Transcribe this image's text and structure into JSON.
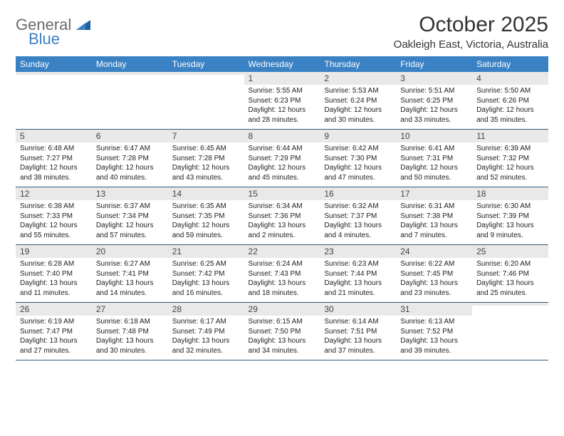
{
  "brand": {
    "name1": "General",
    "name2": "Blue"
  },
  "title": "October 2025",
  "location": "Oakleigh East, Victoria, Australia",
  "colors": {
    "header_bg": "#3b82c4",
    "header_text": "#ffffff",
    "daynum_bg": "#e9e9e9",
    "row_border": "#2f5a80",
    "logo_gray": "#6b6b6b",
    "logo_blue": "#3b82c4"
  },
  "weekdays": [
    "Sunday",
    "Monday",
    "Tuesday",
    "Wednesday",
    "Thursday",
    "Friday",
    "Saturday"
  ],
  "weeks": [
    [
      {
        "n": "",
        "l": [
          "",
          "",
          "",
          ""
        ]
      },
      {
        "n": "",
        "l": [
          "",
          "",
          "",
          ""
        ]
      },
      {
        "n": "",
        "l": [
          "",
          "",
          "",
          ""
        ]
      },
      {
        "n": "1",
        "l": [
          "Sunrise: 5:55 AM",
          "Sunset: 6:23 PM",
          "Daylight: 12 hours",
          "and 28 minutes."
        ]
      },
      {
        "n": "2",
        "l": [
          "Sunrise: 5:53 AM",
          "Sunset: 6:24 PM",
          "Daylight: 12 hours",
          "and 30 minutes."
        ]
      },
      {
        "n": "3",
        "l": [
          "Sunrise: 5:51 AM",
          "Sunset: 6:25 PM",
          "Daylight: 12 hours",
          "and 33 minutes."
        ]
      },
      {
        "n": "4",
        "l": [
          "Sunrise: 5:50 AM",
          "Sunset: 6:26 PM",
          "Daylight: 12 hours",
          "and 35 minutes."
        ]
      }
    ],
    [
      {
        "n": "5",
        "l": [
          "Sunrise: 6:48 AM",
          "Sunset: 7:27 PM",
          "Daylight: 12 hours",
          "and 38 minutes."
        ]
      },
      {
        "n": "6",
        "l": [
          "Sunrise: 6:47 AM",
          "Sunset: 7:28 PM",
          "Daylight: 12 hours",
          "and 40 minutes."
        ]
      },
      {
        "n": "7",
        "l": [
          "Sunrise: 6:45 AM",
          "Sunset: 7:28 PM",
          "Daylight: 12 hours",
          "and 43 minutes."
        ]
      },
      {
        "n": "8",
        "l": [
          "Sunrise: 6:44 AM",
          "Sunset: 7:29 PM",
          "Daylight: 12 hours",
          "and 45 minutes."
        ]
      },
      {
        "n": "9",
        "l": [
          "Sunrise: 6:42 AM",
          "Sunset: 7:30 PM",
          "Daylight: 12 hours",
          "and 47 minutes."
        ]
      },
      {
        "n": "10",
        "l": [
          "Sunrise: 6:41 AM",
          "Sunset: 7:31 PM",
          "Daylight: 12 hours",
          "and 50 minutes."
        ]
      },
      {
        "n": "11",
        "l": [
          "Sunrise: 6:39 AM",
          "Sunset: 7:32 PM",
          "Daylight: 12 hours",
          "and 52 minutes."
        ]
      }
    ],
    [
      {
        "n": "12",
        "l": [
          "Sunrise: 6:38 AM",
          "Sunset: 7:33 PM",
          "Daylight: 12 hours",
          "and 55 minutes."
        ]
      },
      {
        "n": "13",
        "l": [
          "Sunrise: 6:37 AM",
          "Sunset: 7:34 PM",
          "Daylight: 12 hours",
          "and 57 minutes."
        ]
      },
      {
        "n": "14",
        "l": [
          "Sunrise: 6:35 AM",
          "Sunset: 7:35 PM",
          "Daylight: 12 hours",
          "and 59 minutes."
        ]
      },
      {
        "n": "15",
        "l": [
          "Sunrise: 6:34 AM",
          "Sunset: 7:36 PM",
          "Daylight: 13 hours",
          "and 2 minutes."
        ]
      },
      {
        "n": "16",
        "l": [
          "Sunrise: 6:32 AM",
          "Sunset: 7:37 PM",
          "Daylight: 13 hours",
          "and 4 minutes."
        ]
      },
      {
        "n": "17",
        "l": [
          "Sunrise: 6:31 AM",
          "Sunset: 7:38 PM",
          "Daylight: 13 hours",
          "and 7 minutes."
        ]
      },
      {
        "n": "18",
        "l": [
          "Sunrise: 6:30 AM",
          "Sunset: 7:39 PM",
          "Daylight: 13 hours",
          "and 9 minutes."
        ]
      }
    ],
    [
      {
        "n": "19",
        "l": [
          "Sunrise: 6:28 AM",
          "Sunset: 7:40 PM",
          "Daylight: 13 hours",
          "and 11 minutes."
        ]
      },
      {
        "n": "20",
        "l": [
          "Sunrise: 6:27 AM",
          "Sunset: 7:41 PM",
          "Daylight: 13 hours",
          "and 14 minutes."
        ]
      },
      {
        "n": "21",
        "l": [
          "Sunrise: 6:25 AM",
          "Sunset: 7:42 PM",
          "Daylight: 13 hours",
          "and 16 minutes."
        ]
      },
      {
        "n": "22",
        "l": [
          "Sunrise: 6:24 AM",
          "Sunset: 7:43 PM",
          "Daylight: 13 hours",
          "and 18 minutes."
        ]
      },
      {
        "n": "23",
        "l": [
          "Sunrise: 6:23 AM",
          "Sunset: 7:44 PM",
          "Daylight: 13 hours",
          "and 21 minutes."
        ]
      },
      {
        "n": "24",
        "l": [
          "Sunrise: 6:22 AM",
          "Sunset: 7:45 PM",
          "Daylight: 13 hours",
          "and 23 minutes."
        ]
      },
      {
        "n": "25",
        "l": [
          "Sunrise: 6:20 AM",
          "Sunset: 7:46 PM",
          "Daylight: 13 hours",
          "and 25 minutes."
        ]
      }
    ],
    [
      {
        "n": "26",
        "l": [
          "Sunrise: 6:19 AM",
          "Sunset: 7:47 PM",
          "Daylight: 13 hours",
          "and 27 minutes."
        ]
      },
      {
        "n": "27",
        "l": [
          "Sunrise: 6:18 AM",
          "Sunset: 7:48 PM",
          "Daylight: 13 hours",
          "and 30 minutes."
        ]
      },
      {
        "n": "28",
        "l": [
          "Sunrise: 6:17 AM",
          "Sunset: 7:49 PM",
          "Daylight: 13 hours",
          "and 32 minutes."
        ]
      },
      {
        "n": "29",
        "l": [
          "Sunrise: 6:15 AM",
          "Sunset: 7:50 PM",
          "Daylight: 13 hours",
          "and 34 minutes."
        ]
      },
      {
        "n": "30",
        "l": [
          "Sunrise: 6:14 AM",
          "Sunset: 7:51 PM",
          "Daylight: 13 hours",
          "and 37 minutes."
        ]
      },
      {
        "n": "31",
        "l": [
          "Sunrise: 6:13 AM",
          "Sunset: 7:52 PM",
          "Daylight: 13 hours",
          "and 39 minutes."
        ]
      },
      {
        "n": "",
        "l": [
          "",
          "",
          "",
          ""
        ]
      }
    ]
  ]
}
